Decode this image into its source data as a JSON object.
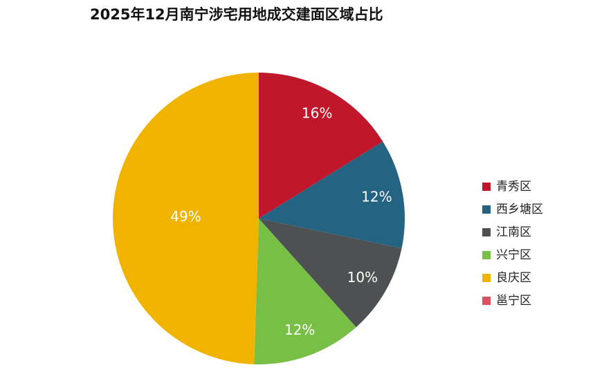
{
  "chart_data": {
    "type": "pie",
    "title": "2025年12月南宁涉宅用地成交建面区域占比",
    "categories": [
      "青秀区",
      "西乡塘区",
      "江南区",
      "兴宁区",
      "良庆区",
      "邕宁区"
    ],
    "values": [
      16,
      12,
      10,
      12,
      49,
      0
    ],
    "value_labels": [
      "16%",
      "12%",
      "10%",
      "12%",
      "49%",
      null
    ],
    "colors": [
      "#c0172b",
      "#246482",
      "#4e5152",
      "#78bf45",
      "#f0b400",
      "#e0505e"
    ],
    "legend": "right"
  }
}
